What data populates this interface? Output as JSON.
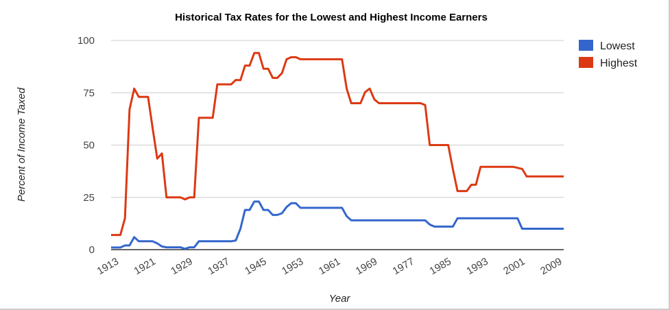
{
  "chart_data": {
    "type": "line",
    "title": "Historical Tax Rates for the Lowest and Highest Income Earners",
    "xlabel": "Year",
    "ylabel": "Percent of Income Taxed",
    "ylim": [
      0,
      100
    ],
    "xlim": [
      1913,
      2011
    ],
    "yticks": [
      0,
      25,
      50,
      75,
      100
    ],
    "xticks": [
      1913,
      1921,
      1929,
      1937,
      1945,
      1953,
      1961,
      1969,
      1977,
      1985,
      1993,
      2001,
      2009
    ],
    "grid": true,
    "legend_position": "right",
    "x_start": 1913,
    "series": [
      {
        "name": "Lowest",
        "color": "#3366cc",
        "values": [
          1,
          1,
          1,
          2,
          2,
          6,
          4,
          4,
          4,
          4,
          3,
          1.5,
          1.1,
          1.1,
          1.1,
          1.1,
          0.4,
          1.1,
          1.1,
          4,
          4,
          4,
          4,
          4,
          4,
          4,
          4,
          4.4,
          10,
          19,
          19,
          23,
          23,
          19,
          19,
          16.6,
          16.6,
          17.4,
          20.4,
          22.2,
          22.2,
          20,
          20,
          20,
          20,
          20,
          20,
          20,
          20,
          20,
          20,
          16,
          14,
          14,
          14,
          14,
          14,
          14,
          14,
          14,
          14,
          14,
          14,
          14,
          14,
          14,
          14,
          14,
          14,
          12,
          11,
          11,
          11,
          11,
          11,
          15,
          15,
          15,
          15,
          15,
          15,
          15,
          15,
          15,
          15,
          15,
          15,
          15,
          15,
          10,
          10,
          10,
          10,
          10,
          10,
          10,
          10,
          10,
          10
        ]
      },
      {
        "name": "Highest",
        "color": "#dc3912",
        "values": [
          7,
          7,
          7,
          15,
          67,
          77,
          73,
          73,
          73,
          58,
          43.5,
          46,
          25,
          25,
          25,
          25,
          24,
          25,
          25,
          63,
          63,
          63,
          63,
          79,
          79,
          79,
          79,
          81.1,
          81,
          88,
          88,
          94,
          94,
          86.5,
          86.5,
          82.1,
          82.1,
          84.4,
          91,
          92,
          92,
          91,
          91,
          91,
          91,
          91,
          91,
          91,
          91,
          91,
          91,
          77,
          70,
          70,
          70,
          75.3,
          77,
          71.8,
          70,
          70,
          70,
          70,
          70,
          70,
          70,
          70,
          70,
          70,
          69.1,
          50,
          50,
          50,
          50,
          50,
          38.5,
          28,
          28,
          28,
          31,
          31,
          39.6,
          39.6,
          39.6,
          39.6,
          39.6,
          39.6,
          39.6,
          39.6,
          39.1,
          38.6,
          35,
          35,
          35,
          35,
          35,
          35,
          35,
          35,
          35
        ]
      }
    ]
  }
}
